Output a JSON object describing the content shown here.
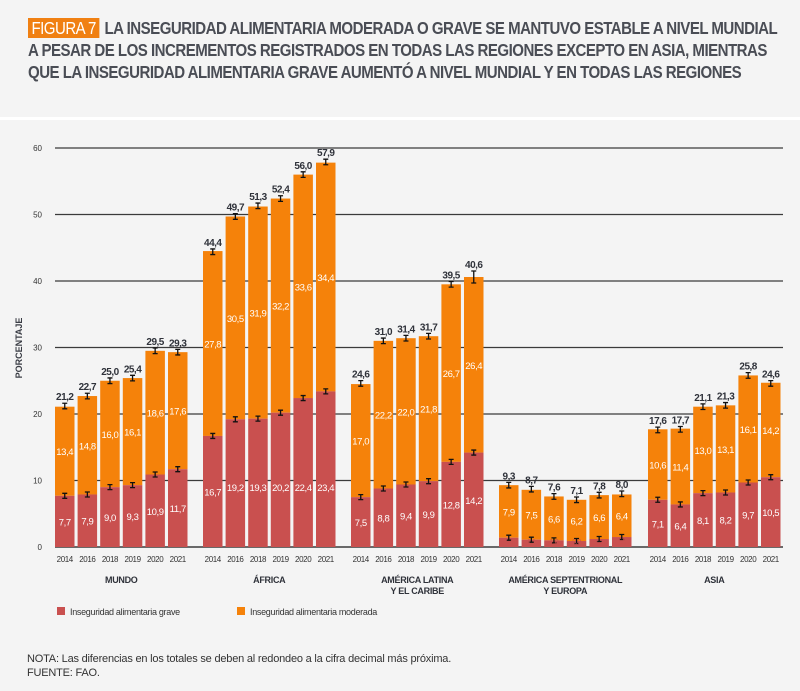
{
  "figure": {
    "badge": "FIGURA 7",
    "title": "LA INSEGURIDAD ALIMENTARIA MODERADA O GRAVE SE MANTUVO ESTABLE A NIVEL MUNDIAL A PESAR DE LOS INCREMENTOS REGISTRADOS EN TODAS LAS REGIONES EXCEPTO EN ASIA, MIENTRAS QUE LA INSEGURIDAD ALIMENTARIA GRAVE AUMENTÓ A NIVEL MUNDIAL Y EN TODAS LAS REGIONES",
    "note": "NOTA: Las diferencias en los totales se deben al redondeo a la cifra decimal más próxima.",
    "source": "FUENTE: FAO."
  },
  "colors": {
    "grave": "#c9504f",
    "moderada": "#f5820a",
    "badge": "#f08012",
    "text": "#4a4d55"
  },
  "chart_data": {
    "type": "bar",
    "stacked": true,
    "title": "",
    "xlabel": "",
    "ylabel": "PORCENTAJE",
    "ylim": [
      0,
      60
    ],
    "yticks": [
      "0",
      "10",
      "20",
      "30",
      "40",
      "50",
      "60"
    ],
    "grid": true,
    "legend_position": "bottom-left",
    "legend": [
      {
        "key": "grave",
        "label": "Inseguridad alimentaria grave"
      },
      {
        "key": "moderada",
        "label": "Inseguridad alimentaria moderada"
      }
    ],
    "categories": [
      "2014",
      "2016",
      "2018",
      "2019",
      "2020",
      "2021"
    ],
    "groups": [
      {
        "name": "MUNDO",
        "name_lines": [
          "MUNDO"
        ],
        "grave": [
          7.7,
          7.9,
          9.0,
          9.3,
          10.9,
          11.7
        ],
        "grave_labels": [
          "7,7",
          "7,9",
          "9,0",
          "9,3",
          "10,9",
          "11,7"
        ],
        "moderada": [
          13.4,
          14.8,
          16.0,
          16.1,
          18.6,
          17.6
        ],
        "moderada_labels": [
          "13,4",
          "14,8",
          "16,0",
          "16,1",
          "18,6",
          "17,6"
        ],
        "total": [
          21.2,
          22.7,
          25.0,
          25.4,
          29.5,
          29.3
        ],
        "total_labels": [
          "21,2",
          "22,7",
          "25,0",
          "25,4",
          "29,5",
          "29,3"
        ]
      },
      {
        "name": "ÁFRICA",
        "name_lines": [
          "ÁFRICA"
        ],
        "grave": [
          16.7,
          19.2,
          19.3,
          20.2,
          22.4,
          23.4
        ],
        "grave_labels": [
          "16,7",
          "19,2",
          "19,3",
          "20,2",
          "22,4",
          "23,4"
        ],
        "moderada": [
          27.8,
          30.5,
          31.9,
          32.2,
          33.6,
          34.4
        ],
        "moderada_labels": [
          "27,8",
          "30,5",
          "31,9",
          "32,2",
          "33,6",
          "34,4"
        ],
        "total": [
          44.4,
          49.7,
          51.3,
          52.4,
          56.0,
          57.9
        ],
        "total_labels": [
          "44,4",
          "49,7",
          "51,3",
          "52,4",
          "56,0",
          "57,9"
        ]
      },
      {
        "name": "AMÉRICA LATINA Y EL CARIBE",
        "name_lines": [
          "AMÉRICA LATINA",
          "Y EL CARIBE"
        ],
        "grave": [
          7.5,
          8.8,
          9.4,
          9.9,
          12.8,
          14.2
        ],
        "grave_labels": [
          "7,5",
          "8,8",
          "9,4",
          "9,9",
          "12,8",
          "14,2"
        ],
        "moderada": [
          17.0,
          22.2,
          22.0,
          21.8,
          26.7,
          26.4
        ],
        "moderada_labels": [
          "17,0",
          "22,2",
          "22,0",
          "21,8",
          "26,7",
          "26,4"
        ],
        "total": [
          24.6,
          31.0,
          31.4,
          31.7,
          39.5,
          40.6
        ],
        "total_labels": [
          "24,6",
          "31,0",
          "31,4",
          "31,7",
          "39,5",
          "40,6"
        ]
      },
      {
        "name": "AMÉRICA SEPTENTRIONAL Y EUROPA",
        "name_lines": [
          "AMÉRICA SEPTENTRIONAL",
          "Y EUROPA"
        ],
        "grave": [
          1.4,
          1.1,
          1.0,
          0.9,
          1.2,
          1.5
        ],
        "grave_labels": [
          "1,4",
          "1,1",
          "1,0",
          "0,9",
          "1,2",
          "1,5"
        ],
        "moderada": [
          7.9,
          7.5,
          6.6,
          6.2,
          6.6,
          6.4
        ],
        "moderada_labels": [
          "7,9",
          "7,5",
          "6,6",
          "6,2",
          "6,6",
          "6,4"
        ],
        "total": [
          9.3,
          8.7,
          7.6,
          7.1,
          7.8,
          8.0
        ],
        "total_labels": [
          "9,3",
          "8,7",
          "7,6",
          "7,1",
          "7,8",
          "8,0"
        ]
      },
      {
        "name": "ASIA",
        "name_lines": [
          "ASIA"
        ],
        "grave": [
          7.1,
          6.4,
          8.1,
          8.2,
          9.7,
          10.5
        ],
        "grave_labels": [
          "7,1",
          "6,4",
          "8,1",
          "8,2",
          "9,7",
          "10,5"
        ],
        "moderada": [
          10.6,
          11.4,
          13.0,
          13.1,
          16.1,
          14.2
        ],
        "moderada_labels": [
          "10,6",
          "11,4",
          "13,0",
          "13,1",
          "16,1",
          "14,2"
        ],
        "total": [
          17.6,
          17.7,
          21.1,
          21.3,
          25.8,
          24.6
        ],
        "total_labels": [
          "17,6",
          "17,7",
          "21,1",
          "21,3",
          "25,8",
          "24,6"
        ]
      }
    ]
  }
}
